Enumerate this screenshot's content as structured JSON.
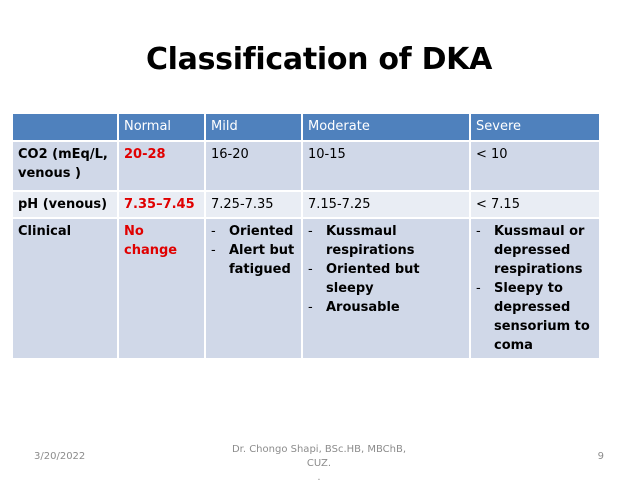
{
  "slide": {
    "title": "Classification of DKA"
  },
  "table": {
    "headers": [
      "",
      "Normal",
      "Mild",
      "Moderate",
      "Severe"
    ],
    "rows": [
      {
        "param": "CO2 (mEq/L, venous )",
        "normal": "20-28",
        "mild": "16-20",
        "moderate": "10-15",
        "severe": "< 10"
      },
      {
        "param": "pH (venous)",
        "normal": "7.35–7.45",
        "mild": "7.25-7.35",
        "moderate": "7.15-7.25",
        "severe": "< 7.15"
      },
      {
        "param": "Clinical",
        "normal": "No change",
        "mild": [
          "Oriented",
          "Alert but fatigued"
        ],
        "moderate": [
          "Kussmaul respirations",
          "Oriented but sleepy",
          "Arousable"
        ],
        "severe": [
          "Kussmaul or depressed respirations",
          "Sleepy to depressed sensorium to coma"
        ]
      }
    ]
  },
  "footer": {
    "date": "3/20/2022",
    "author": "Dr. Chongo Shapi, BSc.HB, MBChB, CUZ.",
    "author_line2": ".",
    "page": "9"
  },
  "colors": {
    "header_bg": "#4f81bd",
    "row_odd": "#d0d8e8",
    "row_even": "#e9edf4",
    "normal_text": "#e00000"
  }
}
